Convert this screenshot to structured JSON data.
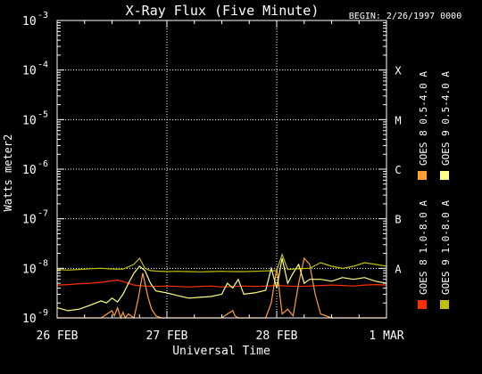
{
  "chart_data": {
    "type": "line",
    "title": "X-Ray Flux (Five Minute)",
    "begin_label": "BEGIN: 2/26/1997 0000",
    "xlabel": "Universal Time",
    "ylabel": "Watts meter2",
    "y_scale": "log",
    "ylim": [
      1e-09,
      0.001
    ],
    "xlim": [
      0,
      3
    ],
    "grid": true,
    "y_ticks": [
      {
        "mant": "10",
        "exp": "-9"
      },
      {
        "mant": "10",
        "exp": "-8"
      },
      {
        "mant": "10",
        "exp": "-7"
      },
      {
        "mant": "10",
        "exp": "-6"
      },
      {
        "mant": "10",
        "exp": "-5"
      },
      {
        "mant": "10",
        "exp": "-4"
      },
      {
        "mant": "10",
        "exp": "-3"
      }
    ],
    "x_ticks": [
      "26 FEB",
      "27 FEB",
      "28 FEB",
      "1 MAR"
    ],
    "class_labels": [
      {
        "label": "A",
        "flux_exp": -8
      },
      {
        "label": "B",
        "flux_exp": -7
      },
      {
        "label": "C",
        "flux_exp": -6
      },
      {
        "label": "M",
        "flux_exp": -5
      },
      {
        "label": "X",
        "flux_exp": -4
      }
    ],
    "legend": [
      {
        "name": "GOES 8 1.0-8.0 A",
        "color": "#ff3000"
      },
      {
        "name": "GOES 8 0.5-4.0 A",
        "color": "#ffa030"
      },
      {
        "name": "GOES 9 1.0-8.0 A",
        "color": "#c0c000"
      },
      {
        "name": "GOES 9 0.5-4.0 A",
        "color": "#ffff80"
      }
    ],
    "series": [
      {
        "name": "GOES 8 1.0-8.0 A",
        "color": "#ff3000",
        "x": [
          0.0,
          0.1,
          0.2,
          0.3,
          0.4,
          0.5,
          0.55,
          0.6,
          0.7,
          0.8,
          0.9,
          1.0,
          1.1,
          1.2,
          1.3,
          1.4,
          1.5,
          1.6,
          1.7,
          1.8,
          1.9,
          2.0,
          2.1,
          2.2,
          2.3,
          2.4,
          2.5,
          2.6,
          2.7,
          2.8,
          2.9,
          3.0
        ],
        "y": [
          4.6e-09,
          4.7e-09,
          4.9e-09,
          5e-09,
          5.2e-09,
          5.6e-09,
          5.8e-09,
          5.4e-09,
          4.6e-09,
          4.4e-09,
          4.3e-09,
          4.4e-09,
          4.3e-09,
          4.2e-09,
          4.3e-09,
          4.4e-09,
          4.2e-09,
          4.3e-09,
          4.4e-09,
          4.3e-09,
          4.4e-09,
          4.5e-09,
          4.4e-09,
          4.3e-09,
          4.4e-09,
          4.5e-09,
          4.6e-09,
          4.5e-09,
          4.4e-09,
          4.6e-09,
          4.7e-09,
          4.6e-09
        ]
      },
      {
        "name": "GOES 8 0.5-4.0 A",
        "color": "#ffa030",
        "x": [
          0.0,
          0.2,
          0.4,
          0.5,
          0.52,
          0.55,
          0.58,
          0.6,
          0.62,
          0.65,
          0.7,
          0.74,
          0.78,
          0.8,
          0.83,
          0.86,
          0.9,
          0.95,
          1.0,
          1.2,
          1.4,
          1.5,
          1.55,
          1.6,
          1.62,
          1.65,
          1.7,
          1.8,
          1.9,
          1.95,
          2.0,
          2.05,
          2.1,
          2.15,
          2.2,
          2.25,
          2.3,
          2.35,
          2.4,
          2.5,
          2.6,
          2.8,
          3.0
        ],
        "y": [
          1e-09,
          1e-09,
          1e-09,
          1.4e-09,
          1.1e-09,
          1.6e-09,
          1e-09,
          1.3e-09,
          1e-09,
          1.2e-09,
          1e-09,
          2.5e-09,
          8e-09,
          5e-09,
          2.5e-09,
          1.5e-09,
          1.1e-09,
          1e-09,
          1e-09,
          1e-09,
          1e-09,
          1e-09,
          1.2e-09,
          1.4e-09,
          1.1e-09,
          1e-09,
          1e-09,
          1e-09,
          1e-09,
          2e-09,
          1e-08,
          1.2e-09,
          1.5e-09,
          1.1e-09,
          5e-09,
          1.6e-08,
          1.2e-08,
          3e-09,
          1.2e-09,
          1e-09,
          1e-09,
          1e-09,
          1e-09
        ]
      },
      {
        "name": "GOES 9 1.0-8.0 A",
        "color": "#c0c000",
        "x": [
          0.0,
          0.1,
          0.2,
          0.3,
          0.4,
          0.5,
          0.6,
          0.7,
          0.75,
          0.8,
          0.85,
          0.9,
          1.0,
          1.1,
          1.2,
          1.3,
          1.4,
          1.5,
          1.6,
          1.7,
          1.8,
          1.9,
          2.0,
          2.05,
          2.1,
          2.2,
          2.3,
          2.4,
          2.5,
          2.6,
          2.7,
          2.8,
          2.9,
          3.0
        ],
        "y": [
          9.5e-09,
          9.2e-09,
          9.5e-09,
          9.8e-09,
          1e-08,
          9.7e-09,
          9.6e-09,
          1.2e-08,
          1.6e-08,
          1e-08,
          9e-09,
          8.8e-09,
          8.6e-09,
          8.7e-09,
          8.6e-09,
          8.5e-09,
          8.6e-09,
          8.7e-09,
          8.6e-09,
          8.6e-09,
          8.7e-09,
          8.9e-09,
          9e-09,
          1.9e-08,
          9.5e-09,
          9.8e-09,
          1e-08,
          1.3e-08,
          1.1e-08,
          1e-08,
          1.1e-08,
          1.3e-08,
          1.2e-08,
          1.1e-08
        ]
      },
      {
        "name": "GOES 9 0.5-4.0 A",
        "color": "#ffff80",
        "x": [
          0.0,
          0.1,
          0.2,
          0.3,
          0.4,
          0.45,
          0.5,
          0.55,
          0.6,
          0.65,
          0.7,
          0.75,
          0.8,
          0.85,
          0.9,
          1.0,
          1.1,
          1.2,
          1.3,
          1.4,
          1.5,
          1.55,
          1.6,
          1.65,
          1.7,
          1.8,
          1.9,
          1.95,
          2.0,
          2.05,
          2.1,
          2.15,
          2.2,
          2.25,
          2.3,
          2.4,
          2.5,
          2.6,
          2.7,
          2.8,
          2.9,
          3.0
        ],
        "y": [
          1.6e-09,
          1.4e-09,
          1.5e-09,
          1.8e-09,
          2.2e-09,
          2e-09,
          2.5e-09,
          2.1e-09,
          3e-09,
          5e-09,
          8e-09,
          1.1e-08,
          9e-09,
          5e-09,
          3.5e-09,
          3.2e-09,
          2.8e-09,
          2.5e-09,
          2.6e-09,
          2.7e-09,
          3e-09,
          5e-09,
          4e-09,
          6e-09,
          3e-09,
          3.2e-09,
          3.6e-09,
          1e-08,
          4e-09,
          1.6e-08,
          5e-09,
          8e-09,
          1.2e-08,
          5e-09,
          6e-09,
          6e-09,
          5.5e-09,
          6.5e-09,
          6e-09,
          6.5e-09,
          5.5e-09,
          5e-09
        ]
      }
    ]
  }
}
